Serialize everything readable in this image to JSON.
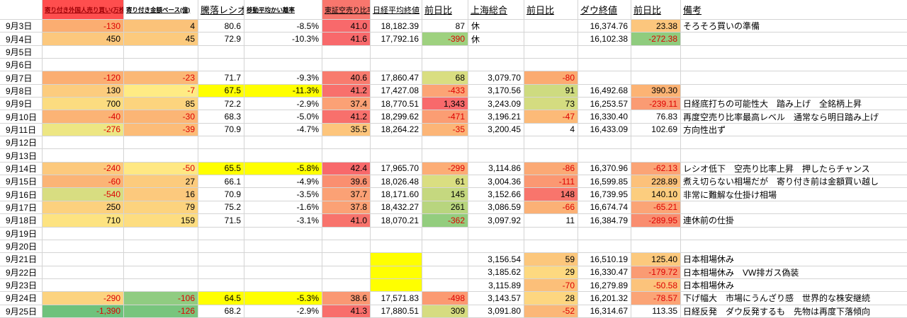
{
  "sheet": {
    "columns": [
      {
        "key": "date",
        "label": ""
      },
      {
        "key": "foreign-open-buy",
        "label": "寄り付き外国人売り買い(万株)",
        "bg": "#FF4E4E",
        "fg": "#9C0006",
        "cls": "xs"
      },
      {
        "key": "open-amount-base",
        "label": "寄り付き金額ベース(億)",
        "cls": "xs"
      },
      {
        "key": "updown-ratio",
        "label": "騰落レシオ",
        "cls": "md"
      },
      {
        "key": "ma-divergence",
        "label": "移動平均かい離率",
        "cls": "xs"
      },
      {
        "key": "tse-short-ratio",
        "label": "東証空売り比率",
        "bg": "#F8766D",
        "cls": "sm"
      },
      {
        "key": "nikkei-close",
        "label": "日経平均終値",
        "cls": "m2"
      },
      {
        "key": "nikkei-change",
        "label": "前日比",
        "cls": "md"
      },
      {
        "key": "shanghai-composite",
        "label": "上海総合",
        "cls": "md"
      },
      {
        "key": "shanghai-change",
        "label": "前日比",
        "cls": "md"
      },
      {
        "key": "dow-close",
        "label": "ダウ終値",
        "cls": "md"
      },
      {
        "key": "dow-change",
        "label": "前日比",
        "cls": "md"
      },
      {
        "key": "remarks",
        "label": "備考",
        "cls": "md"
      }
    ],
    "rows": [
      {
        "date": "9月3日",
        "cells": [
          {
            "v": "-130",
            "bg": "#FBAD71"
          },
          {
            "v": "4",
            "bg": "#FBC279"
          },
          {
            "v": "80.6"
          },
          {
            "v": "-8.5%"
          },
          {
            "v": "41.0",
            "bg": "#F8696B"
          },
          {
            "v": "18,182.39"
          },
          {
            "v": "87"
          },
          {
            "v": "休",
            "align": "left"
          },
          {
            "v": ""
          },
          {
            "v": "16,374.76"
          },
          {
            "v": "23.38",
            "bg": "#FCC67D"
          }
        ],
        "remark": "そろそろ買いの準備"
      },
      {
        "date": "9月4日",
        "cells": [
          {
            "v": "450",
            "bg": "#FCC87D"
          },
          {
            "v": "45",
            "bg": "#FCCA7D"
          },
          {
            "v": "72.9"
          },
          {
            "v": "-10.3%"
          },
          {
            "v": "41.6",
            "bg": "#F8696B"
          },
          {
            "v": "17,792.16"
          },
          {
            "v": "-390",
            "bg": "#9ED17F"
          },
          {
            "v": "休",
            "align": "left"
          },
          {
            "v": ""
          },
          {
            "v": "16,102.38"
          },
          {
            "v": "-272.38",
            "bg": "#8FCC7E"
          }
        ],
        "remark": ""
      },
      {
        "date": "9月5日",
        "cells": [
          {
            "v": ""
          },
          {
            "v": ""
          },
          {
            "v": ""
          },
          {
            "v": ""
          },
          {
            "v": ""
          },
          {
            "v": ""
          },
          {
            "v": ""
          },
          {
            "v": ""
          },
          {
            "v": ""
          },
          {
            "v": ""
          },
          {
            "v": ""
          }
        ],
        "remark": ""
      },
      {
        "date": "9月6日",
        "cells": [
          {
            "v": ""
          },
          {
            "v": ""
          },
          {
            "v": ""
          },
          {
            "v": ""
          },
          {
            "v": ""
          },
          {
            "v": ""
          },
          {
            "v": ""
          },
          {
            "v": ""
          },
          {
            "v": ""
          },
          {
            "v": ""
          },
          {
            "v": ""
          }
        ],
        "remark": ""
      },
      {
        "date": "9月7日",
        "cells": [
          {
            "v": "-120",
            "bg": "#FBAE72"
          },
          {
            "v": "-23",
            "bg": "#FBB876"
          },
          {
            "v": "71.7"
          },
          {
            "v": "-9.3%"
          },
          {
            "v": "40.6",
            "bg": "#F87B6E"
          },
          {
            "v": "17,860.47"
          },
          {
            "v": "68",
            "bg": "#D9DE81"
          },
          {
            "v": "3,079.70"
          },
          {
            "v": "-80",
            "bg": "#FBAB71"
          },
          {
            "v": ""
          },
          {
            "v": ""
          }
        ],
        "remark": ""
      },
      {
        "date": "9月8日",
        "cells": [
          {
            "v": "130",
            "bg": "#FCCC7E"
          },
          {
            "v": "-7",
            "bg": "#FFEB84"
          },
          {
            "v": "67.5",
            "bg": "#FFFF00"
          },
          {
            "v": "-11.3%",
            "bg": "#FFFF00"
          },
          {
            "v": "41.2",
            "bg": "#F8706C"
          },
          {
            "v": "17,427.08"
          },
          {
            "v": "-433",
            "bg": "#FCA475"
          },
          {
            "v": "3,170.56"
          },
          {
            "v": "91",
            "bg": "#CEDB80"
          },
          {
            "v": "16,492.68"
          },
          {
            "v": "390.30",
            "bg": "#FCB374"
          }
        ],
        "remark": ""
      },
      {
        "date": "9月9日",
        "cells": [
          {
            "v": "700",
            "bg": "#FBDC80"
          },
          {
            "v": "85",
            "bg": "#FCD47E"
          },
          {
            "v": "72.2"
          },
          {
            "v": "-2.9%"
          },
          {
            "v": "37.4",
            "bg": "#FBA175"
          },
          {
            "v": "18,770.51"
          },
          {
            "v": "1,343",
            "bg": "#F8696B"
          },
          {
            "v": "3,243.09"
          },
          {
            "v": "73",
            "bg": "#D4DC80"
          },
          {
            "v": "16,253.57"
          },
          {
            "v": "-239.11",
            "bg": "#FA9B73"
          }
        ],
        "remark": "日経底打ちの可能性大　踏み上げ　全銘柄上昇"
      },
      {
        "date": "9月10日",
        "cells": [
          {
            "v": "-40",
            "bg": "#FBB375"
          },
          {
            "v": "-30",
            "bg": "#FBB575"
          },
          {
            "v": "68.3"
          },
          {
            "v": "-5.0%"
          },
          {
            "v": "41.2",
            "bg": "#F8706C"
          },
          {
            "v": "18,299.62"
          },
          {
            "v": "-471",
            "bg": "#FB9D73"
          },
          {
            "v": "3,196.21"
          },
          {
            "v": "-47",
            "bg": "#FCBA78"
          },
          {
            "v": "16,330.40"
          },
          {
            "v": "76.83"
          }
        ],
        "remark": "再度空売り比率最高レベル　通常なら明日踏み上げ"
      },
      {
        "date": "9月11日",
        "cells": [
          {
            "v": "-276",
            "bg": "#EDE683"
          },
          {
            "v": "-39",
            "bg": "#FCBC78"
          },
          {
            "v": "70.9"
          },
          {
            "v": "-4.7%"
          },
          {
            "v": "35.5",
            "bg": "#FDC57C"
          },
          {
            "v": "18,264.22"
          },
          {
            "v": "-35",
            "bg": "#FCB577"
          },
          {
            "v": "3,200.45"
          },
          {
            "v": "4"
          },
          {
            "v": "16,433.09"
          },
          {
            "v": "102.69"
          }
        ],
        "remark": "方向性出ず"
      },
      {
        "date": "9月12日",
        "cells": [
          {
            "v": ""
          },
          {
            "v": ""
          },
          {
            "v": ""
          },
          {
            "v": ""
          },
          {
            "v": ""
          },
          {
            "v": ""
          },
          {
            "v": ""
          },
          {
            "v": ""
          },
          {
            "v": ""
          },
          {
            "v": ""
          },
          {
            "v": ""
          }
        ],
        "remark": ""
      },
      {
        "date": "9月13日",
        "cells": [
          {
            "v": ""
          },
          {
            "v": ""
          },
          {
            "v": ""
          },
          {
            "v": ""
          },
          {
            "v": ""
          },
          {
            "v": ""
          },
          {
            "v": ""
          },
          {
            "v": ""
          },
          {
            "v": ""
          },
          {
            "v": ""
          },
          {
            "v": ""
          }
        ],
        "remark": ""
      },
      {
        "date": "9月14日",
        "cells": [
          {
            "v": "-240",
            "bg": "#FCC97D"
          },
          {
            "v": "-50",
            "bg": "#FFE883"
          },
          {
            "v": "65.5",
            "bg": "#FFFF00"
          },
          {
            "v": "-5.8%",
            "bg": "#FFFF00"
          },
          {
            "v": "42.4",
            "bg": "#F8696B"
          },
          {
            "v": "17,965.70"
          },
          {
            "v": "-299",
            "bg": "#FCAD76"
          },
          {
            "v": "3,114.86"
          },
          {
            "v": "-86",
            "bg": "#FBA975"
          },
          {
            "v": "16,370.96"
          },
          {
            "v": "-62.13",
            "bg": "#FBA476"
          }
        ],
        "remark": "レシオ低下　空売り比率上昇　押したらチャンス"
      },
      {
        "date": "9月15日",
        "cells": [
          {
            "v": "-60",
            "bg": "#FBB476"
          },
          {
            "v": "27",
            "bg": "#FCCB7D"
          },
          {
            "v": "66.1"
          },
          {
            "v": "-4.9%"
          },
          {
            "v": "39.6",
            "bg": "#FA8F70"
          },
          {
            "v": "18,026.48"
          },
          {
            "v": "61",
            "bg": "#DADE81"
          },
          {
            "v": "3,004.36"
          },
          {
            "v": "-111",
            "bg": "#FB9872"
          },
          {
            "v": "16,599.85"
          },
          {
            "v": "228.89",
            "bg": "#FCC17A"
          }
        ],
        "remark": "煮え切らない相場だが　寄り付き前は金額買い越し"
      },
      {
        "date": "9月16日",
        "cells": [
          {
            "v": "-540",
            "bg": "#D8DD81"
          },
          {
            "v": "16",
            "bg": "#FCC97D"
          },
          {
            "v": "70.9"
          },
          {
            "v": "-3.5%"
          },
          {
            "v": "37.7",
            "bg": "#FBA175"
          },
          {
            "v": "18,171.60"
          },
          {
            "v": "145",
            "bg": "#C5D87F"
          },
          {
            "v": "3,152.66"
          },
          {
            "v": "148",
            "bg": "#F8756C"
          },
          {
            "v": "16,739.95"
          },
          {
            "v": "140.10",
            "bg": "#FCCD7E"
          }
        ],
        "remark": "非常に難解な仕掛け相場"
      },
      {
        "date": "9月17日",
        "cells": [
          {
            "v": "250",
            "bg": "#FCD17E"
          },
          {
            "v": "79",
            "bg": "#FCD37E"
          },
          {
            "v": "75.2"
          },
          {
            "v": "-1.6%"
          },
          {
            "v": "37.8",
            "bg": "#FBA175"
          },
          {
            "v": "18,432.27"
          },
          {
            "v": "261",
            "bg": "#B8D57E"
          },
          {
            "v": "3,086.59"
          },
          {
            "v": "-66",
            "bg": "#FBB176"
          },
          {
            "v": "16,674.74"
          },
          {
            "v": "-65.21",
            "bg": "#FBA476"
          }
        ],
        "remark": ""
      },
      {
        "date": "9月18日",
        "cells": [
          {
            "v": "710",
            "bg": "#FDE381"
          },
          {
            "v": "159",
            "bg": "#FDDD80"
          },
          {
            "v": "71.5"
          },
          {
            "v": "-3.1%"
          },
          {
            "v": "41.0",
            "bg": "#F8736C"
          },
          {
            "v": "18,070.21"
          },
          {
            "v": "-362",
            "bg": "#93CD7E"
          },
          {
            "v": "3,097.92"
          },
          {
            "v": "11"
          },
          {
            "v": "16,384.79"
          },
          {
            "v": "-289.95",
            "bg": "#F98D6F"
          }
        ],
        "remark": "連休前の仕掛"
      },
      {
        "date": "9月19日",
        "cells": [
          {
            "v": ""
          },
          {
            "v": ""
          },
          {
            "v": ""
          },
          {
            "v": ""
          },
          {
            "v": ""
          },
          {
            "v": ""
          },
          {
            "v": ""
          },
          {
            "v": ""
          },
          {
            "v": ""
          },
          {
            "v": ""
          },
          {
            "v": ""
          }
        ],
        "remark": ""
      },
      {
        "date": "9月20日",
        "cells": [
          {
            "v": ""
          },
          {
            "v": ""
          },
          {
            "v": ""
          },
          {
            "v": ""
          },
          {
            "v": ""
          },
          {
            "v": ""
          },
          {
            "v": ""
          },
          {
            "v": ""
          },
          {
            "v": ""
          },
          {
            "v": ""
          },
          {
            "v": ""
          }
        ],
        "remark": ""
      },
      {
        "date": "9月21日",
        "cells": [
          {
            "v": ""
          },
          {
            "v": ""
          },
          {
            "v": ""
          },
          {
            "v": ""
          },
          {
            "v": ""
          },
          {
            "v": "",
            "bg": "#FFFF00"
          },
          {
            "v": ""
          },
          {
            "v": "3,156.54"
          },
          {
            "v": "59",
            "bg": "#FCC77C"
          },
          {
            "v": "16,510.19"
          },
          {
            "v": "125.40",
            "bg": "#FCC97D"
          }
        ],
        "remark": "日本相場休み"
      },
      {
        "date": "9月22日",
        "cells": [
          {
            "v": ""
          },
          {
            "v": ""
          },
          {
            "v": ""
          },
          {
            "v": ""
          },
          {
            "v": ""
          },
          {
            "v": "",
            "bg": "#FFFF00"
          },
          {
            "v": ""
          },
          {
            "v": "3,185.62"
          },
          {
            "v": "29",
            "bg": "#FDD980"
          },
          {
            "v": "16,330.47"
          },
          {
            "v": "-179.72",
            "bg": "#FA9B73"
          }
        ],
        "remark": "日本相場休み　VW排ガス偽装"
      },
      {
        "date": "9月23日",
        "cells": [
          {
            "v": ""
          },
          {
            "v": ""
          },
          {
            "v": ""
          },
          {
            "v": ""
          },
          {
            "v": ""
          },
          {
            "v": "",
            "bg": "#FFFF00"
          },
          {
            "v": ""
          },
          {
            "v": "3,115.89"
          },
          {
            "v": "-70",
            "bg": "#FCBF79"
          },
          {
            "v": "16,279.89"
          },
          {
            "v": "-50.58",
            "bg": "#FCC37B"
          }
        ],
        "remark": "日本相場休み"
      },
      {
        "date": "9月24日",
        "cells": [
          {
            "v": "-290",
            "bg": "#FCD37F"
          },
          {
            "v": "-106",
            "bg": "#90CC81"
          },
          {
            "v": "64.5",
            "bg": "#FFFF00"
          },
          {
            "v": "-5.3%",
            "bg": "#FFFF00"
          },
          {
            "v": "38.6",
            "bg": "#FA9873"
          },
          {
            "v": "17,571.83"
          },
          {
            "v": "-498",
            "bg": "#FB9A72"
          },
          {
            "v": "3,143.57"
          },
          {
            "v": "28",
            "bg": "#FDD680"
          },
          {
            "v": "16,201.32"
          },
          {
            "v": "-78.57",
            "bg": "#FBA476"
          }
        ],
        "remark": "下げ幅大　市場にうんざり感　世界的な株安継続"
      },
      {
        "date": "9月25日",
        "cells": [
          {
            "v": "-1,390",
            "bg": "#6EC27C"
          },
          {
            "v": "-126",
            "bg": "#78C57D"
          },
          {
            "v": "68.2"
          },
          {
            "v": "-2.9%"
          },
          {
            "v": "41.3",
            "bg": "#F86E6B"
          },
          {
            "v": "17,880.51"
          },
          {
            "v": "309",
            "bg": "#D6DC80"
          },
          {
            "v": "3,091.80"
          },
          {
            "v": "-52",
            "bg": "#FBB777"
          },
          {
            "v": "16,314.67"
          },
          {
            "v": "113.35"
          }
        ],
        "remark": "日経反発　ダウ反発するも　先物は再度下落傾向"
      }
    ]
  }
}
